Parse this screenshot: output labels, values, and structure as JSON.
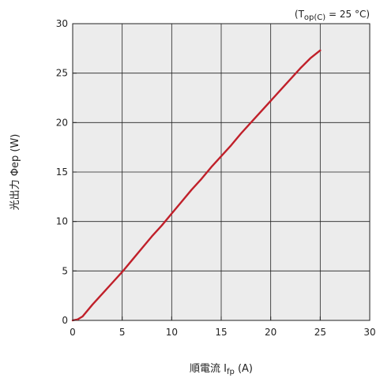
{
  "chart_data": {
    "type": "line",
    "condition": {
      "open": "(T",
      "subscript": "op(C)",
      "rest": " = 25 °C)"
    },
    "xlabel": {
      "main": "順電流 I",
      "subscript": "fp",
      "rest": " (A)"
    },
    "ylabel": "光出力 Φep (W)",
    "xlim": [
      0,
      30
    ],
    "ylim": [
      0,
      30
    ],
    "xticks": [
      0,
      5,
      10,
      15,
      20,
      25,
      30
    ],
    "yticks": [
      0,
      5,
      10,
      15,
      20,
      25,
      30
    ],
    "grid": true,
    "series": [
      {
        "color": "#c0202a",
        "x": [
          0,
          0.5,
          1,
          2,
          3,
          4,
          5,
          6,
          7,
          8,
          9,
          10,
          11,
          12,
          13,
          14,
          15,
          16,
          17,
          18,
          19,
          20,
          21,
          22,
          23,
          24,
          25
        ],
        "y": [
          0,
          0.1,
          0.4,
          1.6,
          2.7,
          3.8,
          4.9,
          6.1,
          7.3,
          8.5,
          9.6,
          10.8,
          12.0,
          13.2,
          14.3,
          15.5,
          16.6,
          17.7,
          18.9,
          20.0,
          21.1,
          22.2,
          23.3,
          24.4,
          25.5,
          26.5,
          27.3
        ]
      }
    ]
  },
  "colors": {
    "plot_background": "#ececec",
    "grid": "#222222",
    "axis": "#222222"
  }
}
